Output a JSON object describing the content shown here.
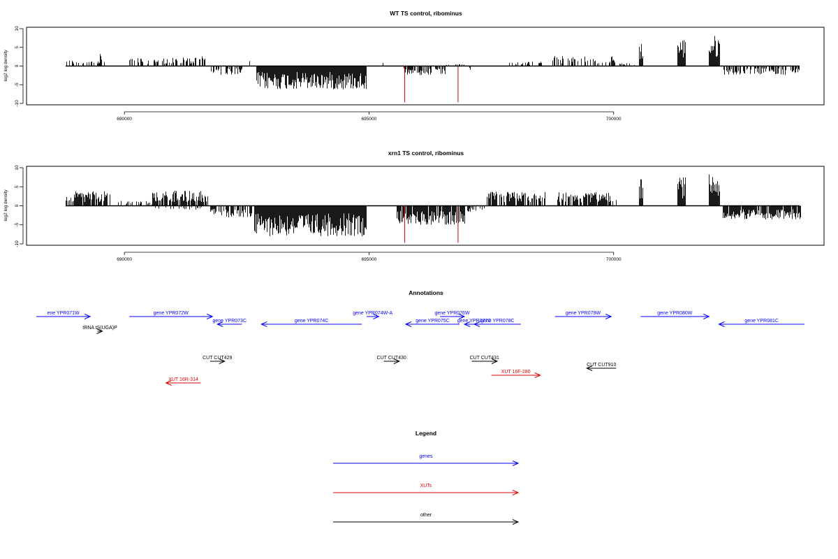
{
  "chart_data": [
    {
      "type": "bar",
      "title": "WT TS control, ribominus",
      "ylabel": "log2 log density",
      "xlabel": "",
      "ylim": [
        -10,
        10
      ],
      "xlim": [
        688000,
        704300
      ],
      "yticks": [
        "-10",
        "-5",
        "0",
        "5",
        "10"
      ],
      "xticks": [
        690000,
        695000,
        700000
      ],
      "xtick_labels": [
        "690000",
        "695000",
        "700000"
      ],
      "baseline_range": [
        688800,
        703800
      ],
      "grid": false,
      "bar_color": "#000000",
      "highlight_color": "#cc0000",
      "highlights": [
        {
          "x": 695730,
          "y": -9.7
        },
        {
          "x": 696820,
          "y": -9.7
        }
      ],
      "segments": [
        {
          "start": 688800,
          "end": 689600,
          "sign": 1,
          "amp": 1.6,
          "density": 0.35
        },
        {
          "start": 689500,
          "end": 689540,
          "sign": 1,
          "amp": 4.3,
          "density": 1
        },
        {
          "start": 690050,
          "end": 691700,
          "sign": 1,
          "amp": 2.2,
          "density": 0.45
        },
        {
          "start": 691050,
          "end": 691650,
          "sign": 1,
          "amp": 2.6,
          "density": 0.2
        },
        {
          "start": 691750,
          "end": 692400,
          "sign": -1,
          "amp": 2.4,
          "density": 0.6
        },
        {
          "start": 692250,
          "end": 692260,
          "sign": -1,
          "amp": 6.5,
          "density": 1
        },
        {
          "start": 692550,
          "end": 692560,
          "sign": 1,
          "amp": 1.5,
          "density": 1
        },
        {
          "start": 692700,
          "end": 694950,
          "sign": -1,
          "amp": 6.3,
          "density": 1
        },
        {
          "start": 695250,
          "end": 695380,
          "sign": 1,
          "amp": 0.9,
          "density": 0.5
        },
        {
          "start": 695700,
          "end": 696550,
          "sign": -1,
          "amp": 2.6,
          "density": 0.55
        },
        {
          "start": 696550,
          "end": 696950,
          "sign": 1,
          "amp": 0.6,
          "density": 0.3
        },
        {
          "start": 697000,
          "end": 697100,
          "sign": -1,
          "amp": 1.2,
          "density": 0.5
        },
        {
          "start": 697850,
          "end": 698700,
          "sign": 1,
          "amp": 1.2,
          "density": 0.3
        },
        {
          "start": 698750,
          "end": 700050,
          "sign": 1,
          "amp": 2.7,
          "density": 0.45
        },
        {
          "start": 700100,
          "end": 700450,
          "sign": 1,
          "amp": 0.8,
          "density": 0.3
        },
        {
          "start": 700520,
          "end": 700600,
          "sign": 1,
          "amp": 6.5,
          "density": 1
        },
        {
          "start": 701300,
          "end": 701460,
          "sign": 1,
          "amp": 7.5,
          "density": 1
        },
        {
          "start": 701950,
          "end": 702170,
          "sign": 1,
          "amp": 8.3,
          "density": 1
        },
        {
          "start": 702200,
          "end": 703820,
          "sign": -1,
          "amp": 2.4,
          "density": 0.55
        }
      ]
    },
    {
      "type": "bar",
      "title": "xrn1 TS control, ribominus",
      "ylabel": "log2 log density",
      "xlabel": "",
      "ylim": [
        -10,
        10
      ],
      "xlim": [
        688000,
        704300
      ],
      "yticks": [
        "-10",
        "-5",
        "0",
        "5",
        "10"
      ],
      "xticks": [
        690000,
        695000,
        700000
      ],
      "xtick_labels": [
        "690000",
        "695000",
        "700000"
      ],
      "baseline_range": [
        688800,
        703800
      ],
      "grid": false,
      "bar_color": "#000000",
      "highlight_color": "#cc0000",
      "highlights": [
        {
          "x": 695730,
          "y": -9.7
        },
        {
          "x": 696820,
          "y": -9.7
        }
      ],
      "segments": [
        {
          "start": 688800,
          "end": 689700,
          "sign": 1,
          "amp": 3.8,
          "density": 0.8
        },
        {
          "start": 689800,
          "end": 690600,
          "sign": 1,
          "amp": 1.4,
          "density": 0.3
        },
        {
          "start": 690550,
          "end": 691700,
          "sign": 1,
          "amp": 4.0,
          "density": 0.85
        },
        {
          "start": 690600,
          "end": 691700,
          "sign": -1,
          "amp": 1.0,
          "density": 0.2
        },
        {
          "start": 691750,
          "end": 692600,
          "sign": -1,
          "amp": 3.2,
          "density": 0.7
        },
        {
          "start": 692650,
          "end": 694950,
          "sign": -1,
          "amp": 8.0,
          "density": 1
        },
        {
          "start": 695550,
          "end": 696950,
          "sign": -1,
          "amp": 5.0,
          "density": 0.9
        },
        {
          "start": 697000,
          "end": 697350,
          "sign": -1,
          "amp": 1.6,
          "density": 0.4
        },
        {
          "start": 697400,
          "end": 698600,
          "sign": 1,
          "amp": 3.7,
          "density": 0.75
        },
        {
          "start": 698850,
          "end": 700050,
          "sign": 1,
          "amp": 3.6,
          "density": 0.8
        },
        {
          "start": 700520,
          "end": 700600,
          "sign": 1,
          "amp": 7.2,
          "density": 1
        },
        {
          "start": 701300,
          "end": 701460,
          "sign": 1,
          "amp": 7.6,
          "density": 1
        },
        {
          "start": 701950,
          "end": 702170,
          "sign": 1,
          "amp": 8.5,
          "density": 1
        },
        {
          "start": 702200,
          "end": 703820,
          "sign": -1,
          "amp": 3.6,
          "density": 0.85
        }
      ]
    }
  ],
  "annotations": {
    "title": "Annotations",
    "colors": {
      "gene": "#0000ff",
      "xut": "#dd0000",
      "other": "#000000"
    },
    "items": [
      {
        "label": "ene YPR071W",
        "type": "gene",
        "start": 688200,
        "end": 689300,
        "dir": 1,
        "row": 0
      },
      {
        "label": "gene YPR072W",
        "type": "gene",
        "start": 690100,
        "end": 691800,
        "dir": 1,
        "row": 0
      },
      {
        "label": "gene YPR073C",
        "type": "gene",
        "start": 691900,
        "end": 692400,
        "dir": -1,
        "row": 1
      },
      {
        "label": "gene YPR074C",
        "type": "gene",
        "start": 692800,
        "end": 694850,
        "dir": -1,
        "row": 1
      },
      {
        "label": "gene YPR074W-A",
        "type": "gene",
        "start": 694950,
        "end": 695200,
        "dir": 1,
        "row": 0
      },
      {
        "label": "gene YPR075C",
        "type": "gene",
        "start": 695750,
        "end": 696850,
        "dir": -1,
        "row": 1
      },
      {
        "label": "gene YPR076W",
        "type": "gene",
        "start": 696450,
        "end": 696950,
        "dir": 1,
        "row": 0
      },
      {
        "label": "gene YPR077C",
        "type": "gene",
        "start": 696950,
        "end": 697350,
        "dir": -1,
        "row": 1
      },
      {
        "label": "gene YPR078C",
        "type": "gene",
        "start": 697150,
        "end": 698100,
        "dir": -1,
        "row": 1
      },
      {
        "label": "gene YPR079W",
        "type": "gene",
        "start": 698800,
        "end": 699950,
        "dir": 1,
        "row": 0
      },
      {
        "label": "gene YPR080W",
        "type": "gene",
        "start": 700550,
        "end": 701950,
        "dir": 1,
        "row": 0
      },
      {
        "label": "gene YPR081C",
        "type": "gene",
        "start": 702150,
        "end": 704050,
        "dir": -1,
        "row": 1
      },
      {
        "label": "tRNA tS(UGA)P",
        "type": "other",
        "start": 689450,
        "end": 689550,
        "dir": 1,
        "row": 2
      },
      {
        "label": "CUT CUT429",
        "type": "other",
        "start": 691750,
        "end": 692050,
        "dir": 1,
        "row": 3
      },
      {
        "label": "CUT CUT430",
        "type": "other",
        "start": 695300,
        "end": 695620,
        "dir": 1,
        "row": 3
      },
      {
        "label": "CUT CUT431",
        "type": "other",
        "start": 697100,
        "end": 697620,
        "dir": 1,
        "row": 3
      },
      {
        "label": "CUT CUT910",
        "type": "other",
        "start": 699450,
        "end": 700050,
        "dir": -1,
        "row": 4
      },
      {
        "label": "XUT 16F-280",
        "type": "xut",
        "start": 697500,
        "end": 698500,
        "dir": 1,
        "row": 5
      },
      {
        "label": "XUT 16R-314",
        "type": "xut",
        "start": 690850,
        "end": 691560,
        "dir": -1,
        "row": 6
      }
    ]
  },
  "legend": {
    "title": "Legend",
    "entries": [
      {
        "label": "genes",
        "type": "gene"
      },
      {
        "label": "XUTs",
        "type": "xut"
      },
      {
        "label": "other",
        "type": "other"
      }
    ]
  }
}
